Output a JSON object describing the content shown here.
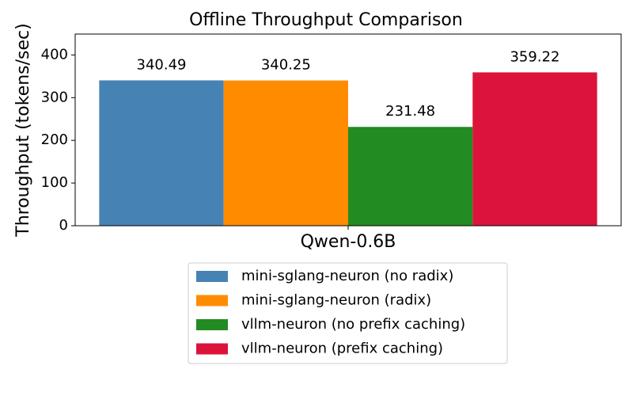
{
  "chart_data": {
    "type": "bar",
    "title": "Offline Throughput Comparison",
    "ylabel": "Throughput (tokens/sec)",
    "categories": [
      "Qwen-0.6B"
    ],
    "series": [
      {
        "name": "mini-sglang-neuron (no radix)",
        "color": "#4682b4",
        "values": [
          340.49
        ]
      },
      {
        "name": "mini-sglang-neuron (radix)",
        "color": "#ff8c00",
        "values": [
          340.25
        ]
      },
      {
        "name": "vllm-neuron (no prefix caching)",
        "color": "#228b22",
        "values": [
          231.48
        ]
      },
      {
        "name": "vllm-neuron (prefix caching)",
        "color": "#dc143c",
        "values": [
          359.22
        ]
      }
    ],
    "ylim": [
      0,
      449
    ],
    "yticks": [
      0,
      100,
      200,
      300,
      400
    ],
    "grid": false,
    "legend": "below"
  }
}
